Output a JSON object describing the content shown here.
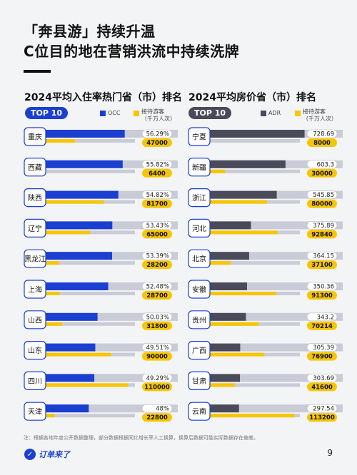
{
  "headline": {
    "line1": "「奔县游」持续升温",
    "line2": "C位目的地在营销洪流中持续洗牌"
  },
  "footnote": "注：根据各地年度公开数据整理，部分数据根据同比增长率人工换算，换算后数据可能实际数据存在偏差。",
  "brand": "订单来了",
  "page_number": "9",
  "colors": {
    "occ": "#1b3fd1",
    "adr": "#4a4a5a",
    "visitors": "#f7c600",
    "track": "#c9ccd6",
    "tag_border": "#1b3fd1",
    "badge_dark": "#4a4a5a"
  },
  "chart_data": [
    {
      "type": "bar",
      "title": "2024平均入住率热门省（市）排名",
      "badge": "TOP 10",
      "legend": {
        "series1": "OCC",
        "series2_line1": "接待游客",
        "series2_line2": "（千万人次）"
      },
      "categories": [
        "重庆",
        "西藏",
        "陕西",
        "辽宁",
        "黑龙江",
        "上海",
        "山西",
        "山东",
        "四川",
        "天津"
      ],
      "series": [
        {
          "name": "OCC",
          "values": [
            56.29,
            55.82,
            54.82,
            53.43,
            53.39,
            52.48,
            50.03,
            49.51,
            49.29,
            48
          ]
        },
        {
          "name": "接待游客",
          "values": [
            47000,
            6400,
            81700,
            65000,
            28200,
            28700,
            31800,
            90000,
            110000,
            22800
          ]
        }
      ],
      "occ_labels": [
        "56.29%",
        "55.82%",
        "54.82%",
        "53.43%",
        "53.39%",
        "52.48%",
        "50.03%",
        "49.51%",
        "49.29%",
        "48%"
      ],
      "visitor_labels": [
        "47000",
        "6400",
        "81700",
        "65000",
        "28200",
        "28700",
        "31800",
        "90000",
        "110000",
        "22800"
      ]
    },
    {
      "type": "bar",
      "title": "2024平均房价省（市）排名",
      "badge": "TOP 10",
      "legend": {
        "series1": "ADR",
        "series2_line1": "接待游客",
        "series2_line2": "（千万人次）"
      },
      "categories": [
        "宁夏",
        "新疆",
        "浙江",
        "河北",
        "北京",
        "安徽",
        "贵州",
        "广西",
        "甘肃",
        "云南"
      ],
      "series": [
        {
          "name": "ADR",
          "values": [
            728.69,
            603.3,
            545.85,
            375.89,
            364.15,
            350.36,
            343.2,
            305.39,
            303.69,
            297.54
          ]
        },
        {
          "name": "接待游客",
          "values": [
            8000,
            30000,
            80000,
            92840,
            37100,
            91300,
            70214,
            76900,
            41600,
            113200
          ]
        }
      ],
      "adr_labels": [
        "728.69",
        "603.3",
        "545.85",
        "375.89",
        "364.15",
        "350.36",
        "343.2",
        "305.39",
        "303.69",
        "297.54"
      ],
      "visitor_labels": [
        "8000",
        "30000",
        "80000",
        "92840",
        "37100",
        "91300",
        "70214",
        "76900",
        "41600",
        "113200"
      ]
    }
  ]
}
